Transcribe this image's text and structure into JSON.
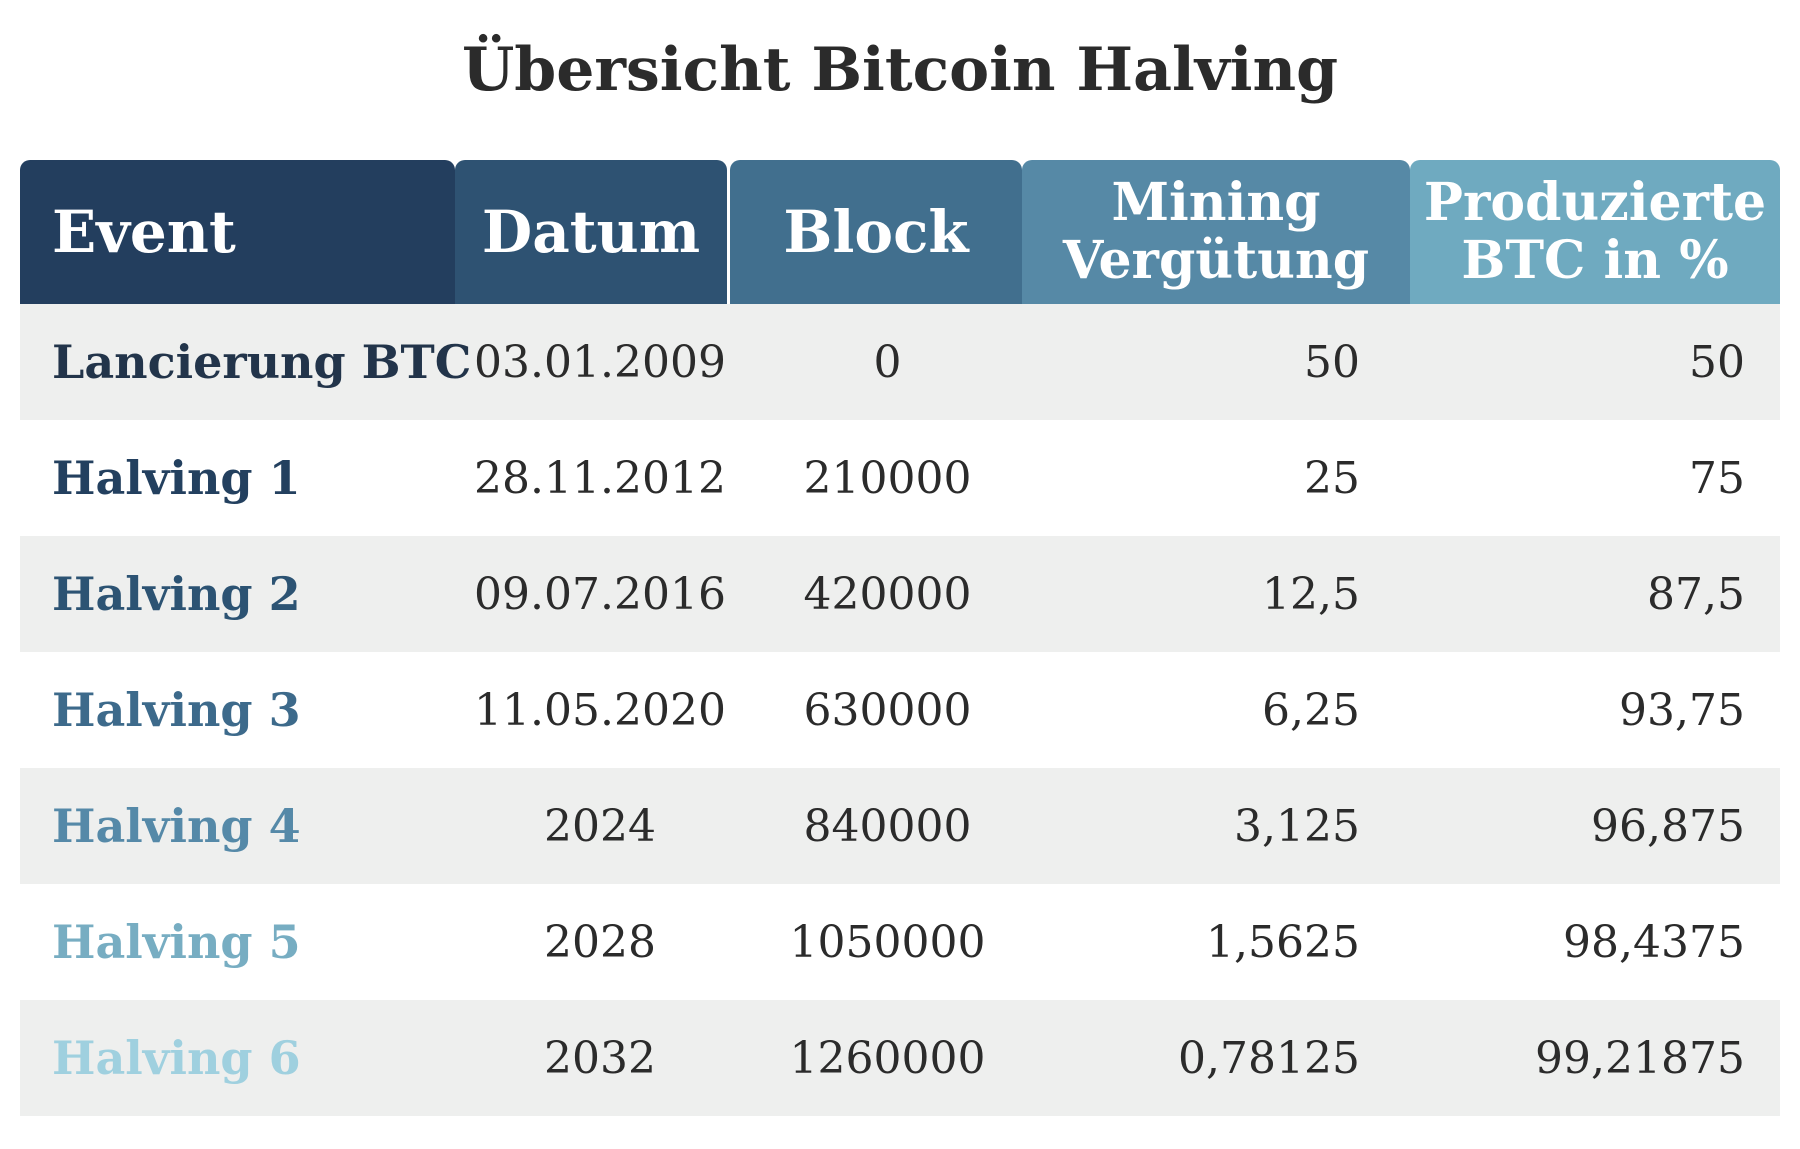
{
  "chart_data": {
    "type": "table",
    "title": "Übersicht Bitcoin Halving",
    "columns": [
      {
        "label": "Event",
        "color": "#233e5e"
      },
      {
        "label": "Datum",
        "color": "#2e5272"
      },
      {
        "label": "Block",
        "color": "#416f8e"
      },
      {
        "label": "Mining Vergütung",
        "lines": [
          "Mining",
          "Vergütung"
        ],
        "color": "#5689a6"
      },
      {
        "label": "Produzierte BTC in %",
        "lines": [
          "Produzierte",
          "BTC in %"
        ],
        "color": "#6faac0"
      }
    ],
    "rows": [
      {
        "event": "Lancierung BTC",
        "datum": "03.01.2009",
        "block": "0",
        "mining": "50",
        "produziert": "50",
        "event_color": "#22344a"
      },
      {
        "event": "Halving 1",
        "datum": "28.11.2012",
        "block": "210000",
        "mining": "25",
        "produziert": "75",
        "event_color": "#23405f"
      },
      {
        "event": "Halving 2",
        "datum": "09.07.2016",
        "block": "420000",
        "mining": "12,5",
        "produziert": "87,5",
        "event_color": "#2c5373"
      },
      {
        "event": "Halving 3",
        "datum": "11.05.2020",
        "block": "630000",
        "mining": "6,25",
        "produziert": "93,75",
        "event_color": "#3d6a8b"
      },
      {
        "event": "Halving 4",
        "datum": "2024",
        "block": "840000",
        "mining": "3,125",
        "produziert": "96,875",
        "event_color": "#5589a8"
      },
      {
        "event": "Halving 5",
        "datum": "2028",
        "block": "1050000",
        "mining": "1,5625",
        "produziert": "98,4375",
        "event_color": "#77adc2"
      },
      {
        "event": "Halving 6",
        "datum": "2032",
        "block": "1260000",
        "mining": "0,78125",
        "produziert": "99,21875",
        "event_color": "#9fd0df"
      }
    ]
  }
}
